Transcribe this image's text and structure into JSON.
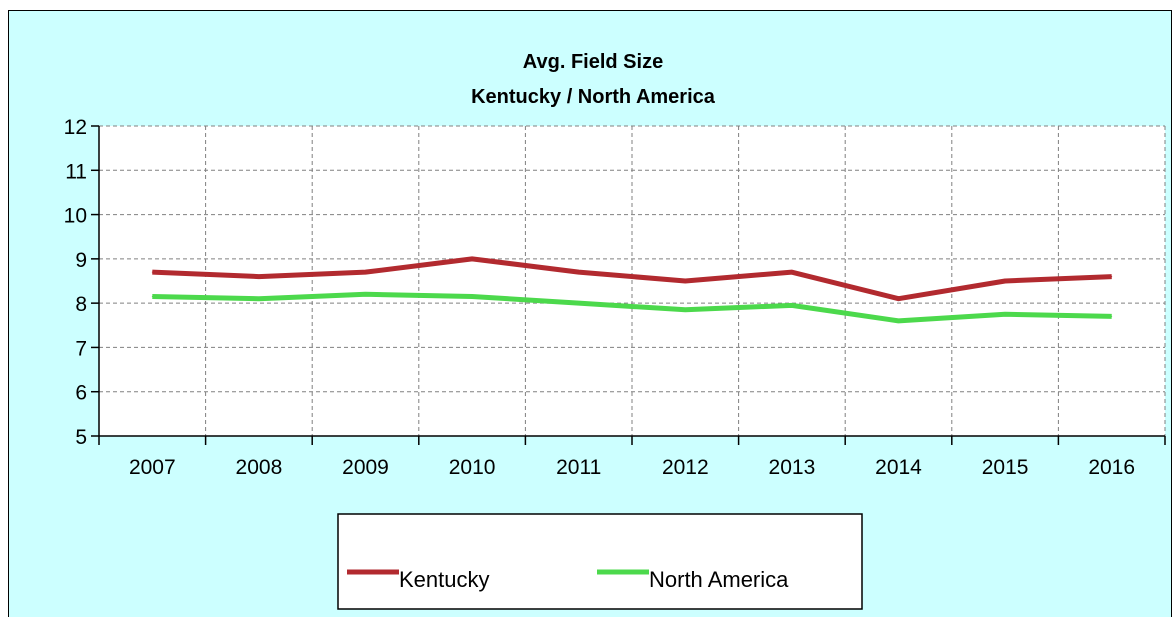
{
  "chart_data": {
    "type": "line",
    "title": "Avg. Field Size",
    "subtitle": "Kentucky / North America",
    "xlabel": "",
    "ylabel": "",
    "categories": [
      "2007",
      "2008",
      "2009",
      "2010",
      "2011",
      "2012",
      "2013",
      "2014",
      "2015",
      "2016"
    ],
    "ylim": [
      5,
      12
    ],
    "yticks": [
      "5",
      "6",
      "7",
      "8",
      "9",
      "10",
      "11",
      "12"
    ],
    "grid": true,
    "legend_position": "bottom",
    "series": [
      {
        "name": "Kentucky",
        "color": "#b22a2f",
        "values": [
          8.7,
          8.6,
          8.7,
          9.0,
          8.7,
          8.5,
          8.7,
          8.1,
          8.5,
          8.6
        ]
      },
      {
        "name": "North America",
        "color": "#4cd94c",
        "values": [
          8.15,
          8.1,
          8.2,
          8.15,
          8.0,
          7.85,
          7.95,
          7.6,
          7.75,
          7.7
        ]
      }
    ]
  },
  "background_color": "#ccffff",
  "plot_background_color": "#ffffff"
}
